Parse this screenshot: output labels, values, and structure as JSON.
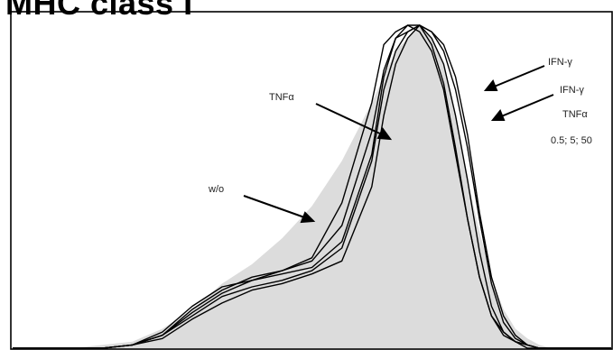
{
  "chart_data": {
    "type": "area",
    "title": "MHC class I",
    "xlabel": "",
    "ylabel": "",
    "xlim": [
      0,
      100
    ],
    "ylim": [
      0,
      100
    ],
    "grid": false,
    "annotations": [
      {
        "name": "label-tnf",
        "text": "TNFα"
      },
      {
        "name": "label-wo",
        "text": "w/o"
      },
      {
        "name": "label-ifn-1",
        "text": "IFN-γ"
      },
      {
        "name": "label-ifn-2",
        "text": "IFN-γ"
      },
      {
        "name": "label-tnf-2",
        "text": "TNFα"
      },
      {
        "name": "label-doses",
        "text": "0.5; 5; 50"
      }
    ],
    "series": [
      {
        "role": "shaded",
        "x": [
          0,
          10,
          20,
          25,
          30,
          35,
          40,
          45,
          50,
          55,
          60,
          62,
          64,
          66,
          68,
          70,
          72,
          74,
          76,
          78,
          80,
          82,
          84,
          86,
          88,
          90,
          95,
          100
        ],
        "y": [
          0,
          0,
          2,
          6,
          12,
          20,
          26,
          34,
          44,
          58,
          76,
          84,
          92,
          96,
          100,
          96,
          88,
          72,
          52,
          36,
          22,
          12,
          6,
          3,
          1,
          0,
          0,
          0
        ]
      },
      {
        "role": "outline",
        "x": [
          0,
          15,
          20,
          25,
          30,
          35,
          40,
          45,
          50,
          55,
          60,
          62,
          64,
          66,
          68,
          70,
          72,
          74,
          76,
          78,
          80,
          82,
          84,
          86,
          88,
          90,
          100
        ],
        "y": [
          0,
          0,
          1,
          5,
          13,
          19,
          21,
          23,
          25,
          33,
          60,
          84,
          96,
          98,
          100,
          94,
          82,
          62,
          40,
          22,
          10,
          5,
          2,
          1,
          0,
          0,
          0
        ]
      },
      {
        "role": "outline",
        "x": [
          0,
          15,
          20,
          25,
          30,
          35,
          40,
          45,
          50,
          55,
          60,
          62,
          64,
          66,
          68,
          70,
          72,
          74,
          76,
          78,
          80,
          82,
          84,
          86,
          88,
          90,
          100
        ],
        "y": [
          0,
          0,
          1,
          4,
          12,
          18,
          22,
          24,
          28,
          45,
          76,
          94,
          98,
          100,
          98,
          92,
          80,
          60,
          40,
          22,
          10,
          4,
          2,
          0,
          0,
          0,
          0
        ]
      },
      {
        "role": "outline",
        "x": [
          0,
          15,
          20,
          25,
          30,
          35,
          40,
          45,
          50,
          55,
          60,
          62,
          64,
          66,
          68,
          70,
          72,
          74,
          76,
          78,
          80,
          82,
          84,
          86,
          88,
          90,
          100
        ],
        "y": [
          0,
          0,
          1,
          4,
          11,
          17,
          21,
          24,
          27,
          38,
          67,
          86,
          96,
          100,
          100,
          96,
          88,
          72,
          52,
          30,
          13,
          5,
          2,
          1,
          0,
          0,
          0
        ]
      },
      {
        "role": "outline",
        "x": [
          0,
          15,
          20,
          25,
          30,
          35,
          40,
          45,
          50,
          55,
          60,
          62,
          64,
          66,
          68,
          70,
          72,
          74,
          76,
          78,
          80,
          82,
          84,
          86,
          88,
          90,
          100
        ],
        "y": [
          0,
          0,
          1,
          4,
          10,
          16,
          19,
          21,
          24,
          31,
          58,
          80,
          92,
          98,
          100,
          98,
          92,
          80,
          62,
          40,
          20,
          8,
          3,
          1,
          0,
          0,
          0
        ]
      },
      {
        "role": "outline",
        "x": [
          0,
          15,
          20,
          25,
          30,
          35,
          40,
          45,
          50,
          55,
          60,
          62,
          64,
          66,
          68,
          70,
          72,
          74,
          76,
          78,
          80,
          82,
          84,
          86,
          88,
          90,
          100
        ],
        "y": [
          0,
          0,
          1,
          3,
          9,
          14,
          18,
          20,
          23,
          27,
          50,
          72,
          88,
          96,
          100,
          98,
          94,
          84,
          66,
          42,
          22,
          10,
          4,
          1,
          0,
          0,
          0
        ]
      }
    ]
  }
}
